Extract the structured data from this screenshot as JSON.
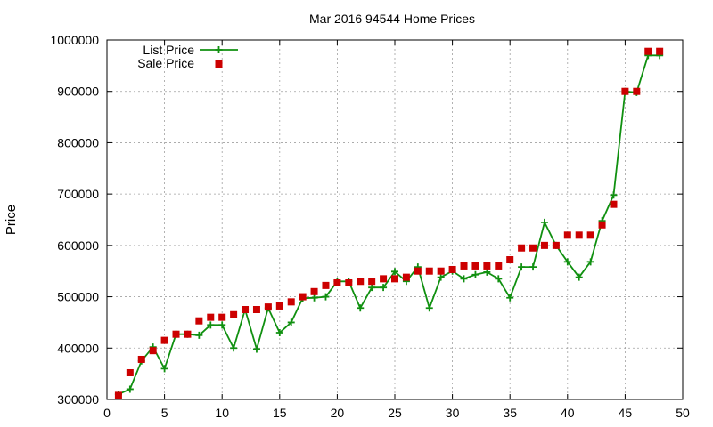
{
  "chart_data": {
    "type": "line",
    "title": "Mar 2016 94544 Home Prices",
    "xlabel": "",
    "ylabel": "Price",
    "xlim": [
      0,
      50
    ],
    "ylim": [
      300000,
      1000000
    ],
    "xticks": [
      0,
      5,
      10,
      15,
      20,
      25,
      30,
      35,
      40,
      45,
      50
    ],
    "yticks": [
      300000,
      400000,
      500000,
      600000,
      700000,
      800000,
      900000,
      1000000
    ],
    "grid": true,
    "legend_position": "top-left",
    "series": [
      {
        "name": "List Price",
        "style": "line-with-plus-markers",
        "color": "#109010",
        "x": [
          1,
          2,
          3,
          4,
          5,
          6,
          7,
          8,
          9,
          10,
          11,
          12,
          13,
          14,
          15,
          16,
          17,
          18,
          19,
          20,
          21,
          22,
          23,
          24,
          25,
          26,
          27,
          28,
          29,
          30,
          31,
          32,
          33,
          34,
          35,
          36,
          37,
          38,
          39,
          40,
          41,
          42,
          43,
          44,
          45,
          46,
          47,
          48
        ],
        "y": [
          310000,
          320000,
          375000,
          402000,
          360000,
          427000,
          427000,
          425000,
          445000,
          445000,
          400000,
          475000,
          398000,
          478000,
          430000,
          450000,
          497000,
          498000,
          500000,
          530000,
          530000,
          478000,
          518000,
          518000,
          549000,
          530000,
          558000,
          478000,
          538000,
          550000,
          535000,
          543000,
          548000,
          535000,
          498000,
          558000,
          558000,
          645000,
          600000,
          568000,
          538000,
          568000,
          648000,
          698000,
          900000,
          898000,
          970000,
          970000
        ]
      },
      {
        "name": "Sale Price",
        "style": "square-markers",
        "color": "#cc0000",
        "x": [
          1,
          2,
          3,
          4,
          5,
          6,
          7,
          8,
          9,
          10,
          11,
          12,
          13,
          14,
          15,
          16,
          17,
          18,
          19,
          20,
          21,
          22,
          23,
          24,
          25,
          26,
          27,
          28,
          29,
          30,
          31,
          32,
          33,
          34,
          35,
          36,
          37,
          38,
          39,
          40,
          41,
          42,
          43,
          44,
          45,
          46,
          47,
          48
        ],
        "y": [
          308000,
          352000,
          378000,
          395000,
          415000,
          427000,
          427000,
          453000,
          460000,
          460000,
          465000,
          475000,
          475000,
          480000,
          482000,
          490000,
          500000,
          510000,
          522000,
          527000,
          527000,
          530000,
          530000,
          535000,
          535000,
          538000,
          550000,
          550000,
          550000,
          553000,
          560000,
          560000,
          560000,
          560000,
          572000,
          595000,
          595000,
          600000,
          600000,
          620000,
          620000,
          620000,
          640000,
          680000,
          900000,
          900000,
          978000,
          978000
        ]
      }
    ]
  }
}
